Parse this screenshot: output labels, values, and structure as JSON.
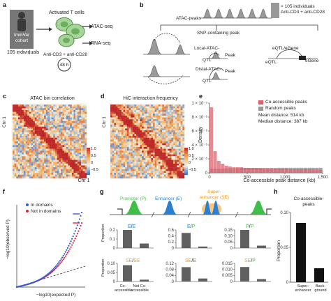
{
  "panels": {
    "a": {
      "label": "a",
      "cohort": [
        "ImmVar",
        "cohort"
      ],
      "individuals": "105 individuals",
      "cells": "Activated T cells",
      "assays": [
        "ATAC-seq",
        "RNA-seq"
      ],
      "stim": "Anti-CD3 + anti-CD28",
      "time": "48 h"
    },
    "b": {
      "label": "b",
      "atac": "ATAC-peaks",
      "individuals": "× 105 individuals",
      "stim": "Anti-CD3 + anti-CD28",
      "snp": "SNP-containing peak",
      "local": "Local-ATAC-",
      "qtl1": "QTL",
      "peak1": "Peak",
      "distal": "Distal-ATAC-",
      "qtl2": "QTL",
      "peak2": "Peak",
      "eqtl_egene": "eQTL/eGene",
      "eqtl": "eQTL",
      "egene": "eGene"
    },
    "c": {
      "label": "c",
      "title": "ATAC bin correlation",
      "ylabel": "Chr 1",
      "xlabel": "Chr 1",
      "scale": [
        "1.0",
        "0.5",
        "0",
        "−0.5"
      ]
    },
    "d": {
      "label": "d",
      "title": "HiC interaction frequency",
      "ylabel": "Chr 1",
      "scale": [
        "1.0",
        "0.5",
        "0",
        "−0.5"
      ]
    },
    "f": {
      "label": "f",
      "legend": [
        "In domains",
        "Not in domains"
      ],
      "ylabel": "−log10(observed P)",
      "xlabel": "−log10(expected P)"
    },
    "g": {
      "label": "g",
      "promoter": "Promoter (P)",
      "enhancer": "Enhancer (E)",
      "super": [
        "Super-",
        "enhancer (SE)"
      ],
      "ylabel": "Proportion",
      "xcats": [
        "Co-accessible",
        "Not Co-accessible"
      ]
    },
    "h": {
      "label": "h",
      "title": [
        "Co-accessible-",
        "peaks"
      ],
      "ylabel": "Proportion",
      "xcats": [
        "Super-enhancer",
        "Back-ground"
      ]
    },
    "e": {
      "label": "e"
    }
  },
  "colors": {
    "promoter": "#3fbf4a",
    "enhancer": "#2a7fd0",
    "super": "#f29a1e",
    "coacc": "#e0606c",
    "random": "#999999",
    "indomains": "#2f5bd3",
    "notindomains": "#e2263b"
  },
  "chart_data": [
    {
      "panel": "e",
      "type": "bar",
      "xlabel": "Co-accessible peak distance (kb)",
      "ylabel": "Density",
      "xlim": [
        0,
        1500
      ],
      "ylim": [
        0,
        1e-05
      ],
      "xticks": [
        "0",
        "500",
        "1,000",
        "1,500"
      ],
      "yticks": [
        "0",
        "2 × 10⁻⁶",
        "4 × 10⁻⁶",
        "6 × 10⁻⁶",
        "8 × 10⁻⁶",
        "1 × 10⁻⁵"
      ],
      "series": [
        {
          "name": "Co-accessible peaks",
          "values": [
            9.4e-06,
            3.1e-06,
            1.7e-06,
            1.3e-06,
            1e-06,
            9e-07,
            8e-07,
            8e-07,
            8e-07,
            7e-07,
            7e-07,
            7e-07,
            7e-07,
            6.5e-07,
            6e-07,
            6e-07,
            6e-07,
            5.5e-07,
            5.5e-07,
            5.5e-07,
            5.5e-07,
            5e-07,
            5e-07,
            5e-07,
            5e-07,
            5e-07,
            5e-07,
            4.5e-07,
            4.5e-07,
            4.5e-07
          ]
        },
        {
          "name": "Random peaks",
          "values": [
            6e-07,
            6e-07,
            6e-07,
            6e-07,
            6.5e-07,
            6.5e-07,
            6.5e-07,
            6.5e-07,
            7e-07,
            7e-07,
            7e-07,
            7e-07,
            7e-07,
            7e-07,
            7e-07,
            7e-07,
            7e-07,
            7e-07,
            7.2e-07,
            7.2e-07,
            7.2e-07,
            7.2e-07,
            7.2e-07,
            7.2e-07,
            7.2e-07,
            7.2e-07,
            7.2e-07,
            7.2e-07,
            7.2e-07,
            7.2e-07
          ]
        }
      ],
      "annotations": [
        "Mean distance: 514 kb",
        "Median distance: 387 kb"
      ]
    },
    {
      "panel": "g",
      "type": "bar",
      "subplots": [
        {
          "title": [
            "E",
            "/",
            "E"
          ],
          "colors": [
            "enhancer",
            "enhancer"
          ],
          "categories": [
            "Co-accessible",
            "Not Co-accessible"
          ],
          "values": [
            0.2,
            0.05
          ],
          "yticks": [
            "0",
            "0.1",
            "0.2"
          ]
        },
        {
          "title": [
            "E",
            "/",
            "P"
          ],
          "colors": [
            "enhancer",
            "promoter"
          ],
          "categories": [
            "Co-accessible",
            "Not Co-accessible"
          ],
          "values": [
            0.5,
            0.05
          ],
          "yticks": [
            "0",
            "0.2",
            "0.4",
            "0.6"
          ]
        },
        {
          "title": [
            "P",
            "/",
            "P"
          ],
          "colors": [
            "promoter",
            "promoter"
          ],
          "categories": [
            "Co-accessible",
            "Not Co-accessible"
          ],
          "values": [
            0.16,
            0.02
          ],
          "yticks": [
            "0",
            "0.05",
            "0.10",
            "0.15"
          ]
        },
        {
          "title": [
            "SE",
            "/",
            "SE"
          ],
          "colors": [
            "super",
            "super"
          ],
          "categories": [
            "Co-accessible",
            "Not Co-accessible"
          ],
          "values": [
            0.09,
            0.01
          ],
          "yticks": [
            "0",
            "0.05",
            "0.10"
          ]
        },
        {
          "title": [
            "SE",
            "/",
            "E"
          ],
          "colors": [
            "super",
            "enhancer"
          ],
          "categories": [
            "Co-accessible",
            "Not Co-accessible"
          ],
          "values": [
            0.095,
            0.02
          ],
          "yticks": [
            "0",
            "0.04",
            "0.08",
            "0.12"
          ]
        },
        {
          "title": [
            "SE",
            "/",
            "P"
          ],
          "colors": [
            "super",
            "promoter"
          ],
          "categories": [
            "Co-accessible",
            "Not Co-accessible"
          ],
          "values": [
            0.012,
            0.002
          ],
          "yticks": [
            "0",
            "0.005",
            "0.010",
            "0.015"
          ]
        }
      ]
    },
    {
      "panel": "h",
      "type": "bar",
      "categories": [
        "Super-enhancer",
        "Back-ground"
      ],
      "values": [
        0.085,
        0.02
      ],
      "ylim": [
        0,
        0.1
      ],
      "yticks": [
        "0",
        "0.05",
        "0.10"
      ]
    }
  ]
}
